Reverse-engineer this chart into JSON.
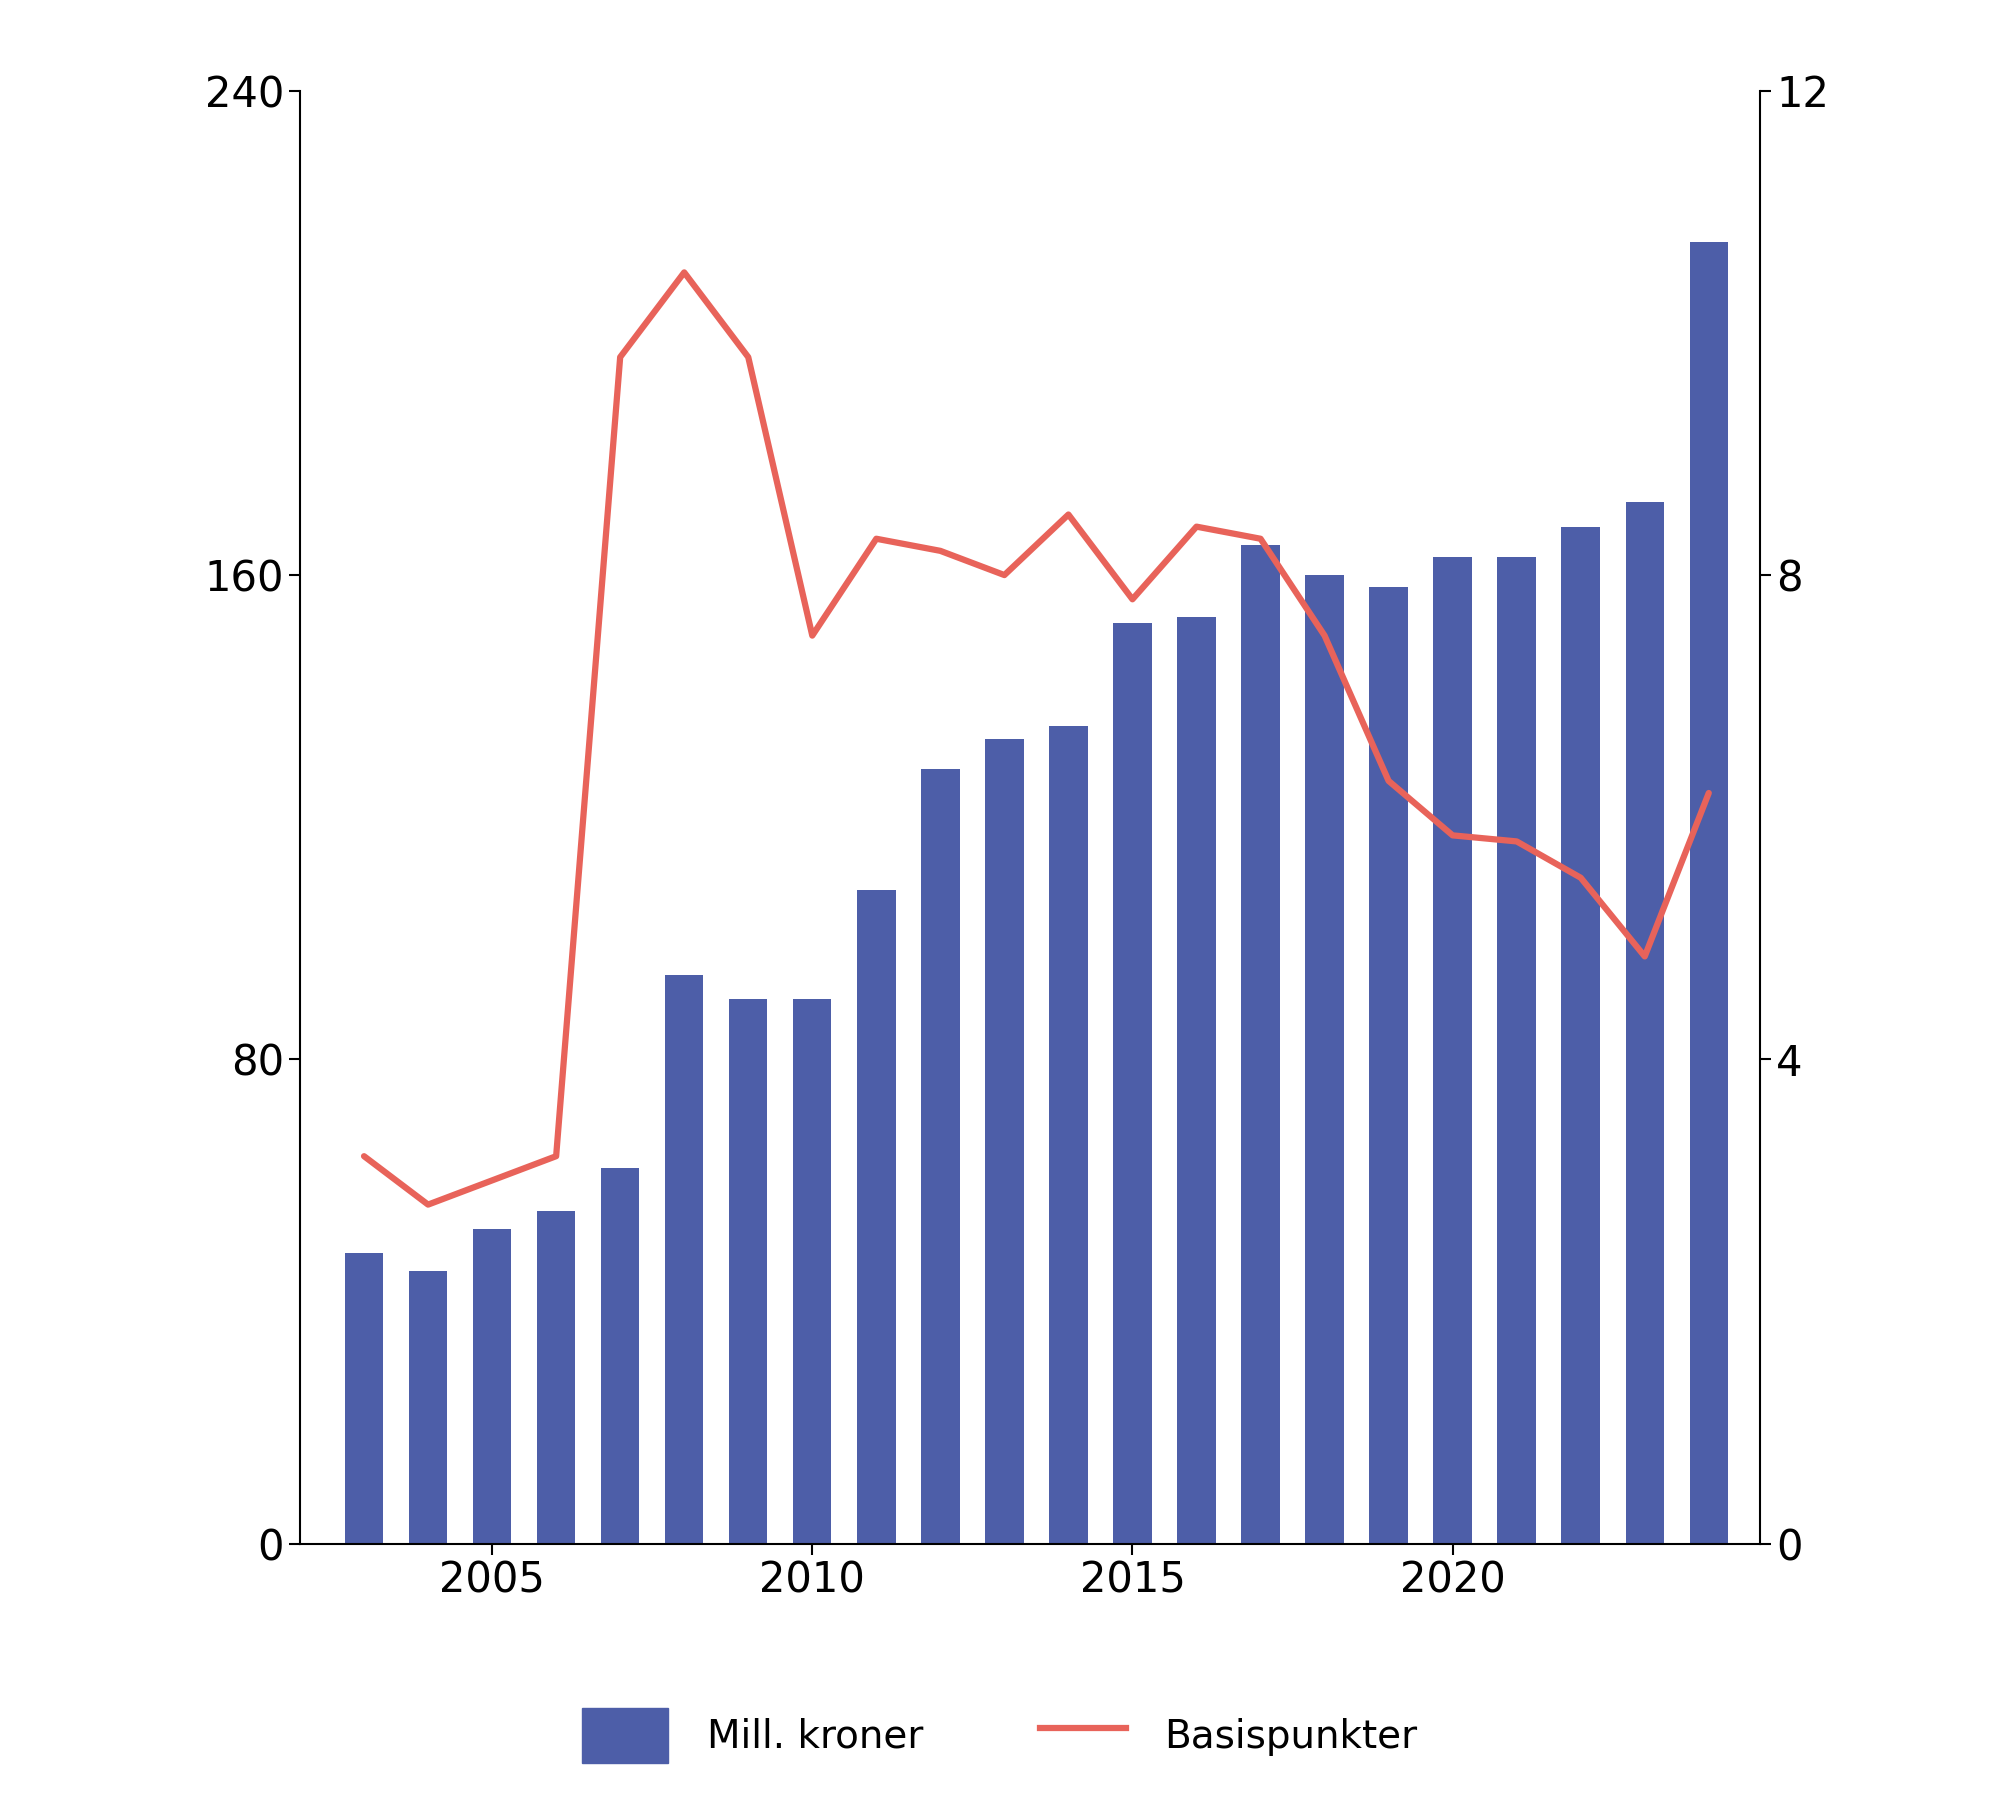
{
  "years": [
    2003,
    2004,
    2005,
    2006,
    2007,
    2008,
    2009,
    2010,
    2011,
    2012,
    2013,
    2014,
    2015,
    2016,
    2017,
    2018,
    2019,
    2020,
    2021,
    2022,
    2023,
    2024
  ],
  "bar_values": [
    48,
    45,
    52,
    55,
    62,
    94,
    90,
    90,
    108,
    128,
    133,
    135,
    152,
    153,
    165,
    160,
    158,
    163,
    163,
    168,
    172,
    215
  ],
  "line_values": [
    3.2,
    2.8,
    3.0,
    3.2,
    9.8,
    10.5,
    9.8,
    7.5,
    8.3,
    8.2,
    8.0,
    8.5,
    7.8,
    8.4,
    8.3,
    7.5,
    6.3,
    5.85,
    5.8,
    5.5,
    4.85,
    6.2
  ],
  "bar_color": "#4d5ea8",
  "line_color": "#e8635a",
  "ylim_left": [
    0,
    240
  ],
  "ylim_right": [
    0,
    12
  ],
  "yticks_left": [
    0,
    80,
    160,
    240
  ],
  "yticks_right": [
    0,
    4,
    8,
    12
  ],
  "xticks": [
    2005,
    2010,
    2015,
    2020
  ],
  "legend_bar_label": "Mill. kroner",
  "legend_line_label": "Basispunkter",
  "background_color": "#ffffff",
  "bar_width": 0.6,
  "line_width": 4.5,
  "tick_fontsize": 30,
  "legend_fontsize": 28
}
